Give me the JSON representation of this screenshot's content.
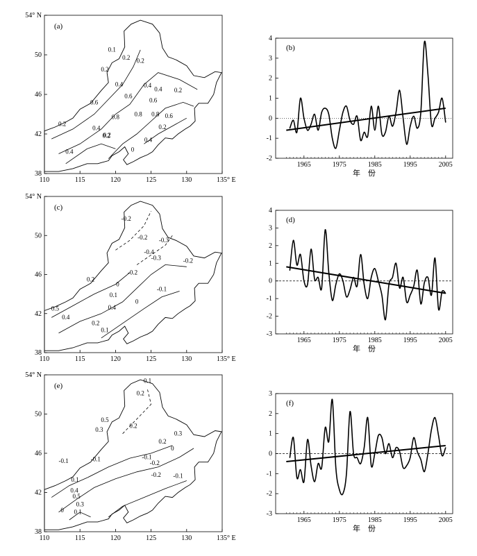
{
  "map_axis": {
    "lat_ticks": [
      "54° N",
      "50",
      "46",
      "42",
      "38"
    ],
    "lon_ticks": [
      "110",
      "115",
      "120",
      "125",
      "130",
      "135° E"
    ]
  },
  "ts_xlabel": "年　份",
  "panels": [
    {
      "map_label": "(a)",
      "contour_labels": [
        "0.1",
        "0.2",
        "0.2",
        "0.2",
        "0.4",
        "0.4",
        "0.4",
        "0.6",
        "0.6",
        "0.6",
        "0.8",
        "0.8",
        "0.8",
        "0.2",
        "0.2",
        "0.4",
        "0.2",
        "0.2",
        "0.4",
        "0.4",
        "0",
        "0.6",
        "0.2"
      ],
      "ts_label": "(b)",
      "yticks": [
        "4",
        "3",
        "2",
        "1",
        "0",
        "-1",
        "-2"
      ],
      "xticks": [
        "1965",
        "1975",
        "1985",
        "1995",
        "2005"
      ]
    },
    {
      "map_label": "(c)",
      "contour_labels": [
        "-0.2",
        "-0.2",
        "-0.3",
        "-0.4",
        "-0.2",
        "-0.3",
        "-0.2",
        "0.2",
        "0.1",
        "0.4",
        "0.5",
        "0.4",
        "0.2",
        "0.1",
        "0",
        "-0.1",
        "0"
      ],
      "ts_label": "(d)",
      "yticks": [
        "4",
        "3",
        "2",
        "1",
        "0",
        "-1",
        "-2",
        "-3"
      ],
      "xticks": [
        "1965",
        "1975",
        "1985",
        "1995",
        "2005"
      ]
    },
    {
      "map_label": "(e)",
      "contour_labels": [
        "0.1",
        "0.2",
        "0.5",
        "0.3",
        "0.2",
        "0.3",
        "0.2",
        "0",
        "-0.1",
        "-0.1",
        "-0.1",
        "-0.2",
        "-0.2",
        "0.1",
        "0.4",
        "0.5",
        "0.3",
        "0.1",
        "0",
        "-0.1"
      ],
      "ts_label": "(f)",
      "yticks": [
        "3",
        "2",
        "1",
        "0",
        "-1",
        "-2",
        "-3"
      ],
      "xticks": [
        "1965",
        "1975",
        "1985",
        "1995",
        "2005"
      ]
    }
  ],
  "chart_data": [
    {
      "type": "line",
      "panel": "(b)",
      "ylim": [
        -2,
        4
      ],
      "xlim": [
        1957,
        2007
      ],
      "x": [
        1961,
        1962,
        1963,
        1964,
        1965,
        1966,
        1967,
        1968,
        1969,
        1970,
        1971,
        1972,
        1973,
        1974,
        1975,
        1976,
        1977,
        1978,
        1979,
        1980,
        1981,
        1982,
        1983,
        1984,
        1985,
        1986,
        1987,
        1988,
        1989,
        1990,
        1991,
        1992,
        1993,
        1994,
        1995,
        1996,
        1997,
        1998,
        1999,
        2000,
        2001,
        2002,
        2003,
        2004,
        2005
      ],
      "series": [
        {
          "values": [
            -0.5,
            -0.1,
            -0.7,
            1.0,
            0.0,
            -0.6,
            -0.3,
            0.2,
            -0.6,
            0.3,
            0.5,
            0.2,
            -1.0,
            -1.5,
            -0.6,
            0.3,
            0.6,
            -0.1,
            -0.3,
            0.1,
            -1.1,
            -0.7,
            -0.9,
            0.6,
            -0.6,
            0.6,
            -0.8,
            -0.7,
            0.1,
            -0.4,
            0.3,
            1.4,
            0.0,
            -1.3,
            -0.4,
            0.1,
            -0.5,
            0.3,
            3.8,
            2.2,
            -0.3,
            0.0,
            0.3,
            1.0,
            -0.2
          ]
        },
        {
          "values": [
            -0.6,
            0.5
          ],
          "x": [
            1960,
            2005
          ],
          "note": "linear trend"
        }
      ],
      "xlabel": "年 份"
    },
    {
      "type": "line",
      "panel": "(d)",
      "ylim": [
        -3,
        4
      ],
      "xlim": [
        1957,
        2007
      ],
      "x": [
        1961,
        1962,
        1963,
        1964,
        1965,
        1966,
        1967,
        1968,
        1969,
        1970,
        1971,
        1972,
        1973,
        1974,
        1975,
        1976,
        1977,
        1978,
        1979,
        1980,
        1981,
        1982,
        1983,
        1984,
        1985,
        1986,
        1987,
        1988,
        1989,
        1990,
        1991,
        1992,
        1993,
        1994,
        1995,
        1996,
        1997,
        1998,
        1999,
        2000,
        2001,
        2002,
        2003,
        2004,
        2005
      ],
      "series": [
        {
          "values": [
            0.6,
            2.3,
            0.9,
            1.5,
            0.0,
            -0.2,
            1.8,
            0.1,
            0.2,
            -0.4,
            2.9,
            0.5,
            -1.1,
            -0.2,
            0.4,
            0.0,
            -0.9,
            -0.5,
            0.2,
            -0.3,
            1.5,
            -0.2,
            -1.0,
            0.2,
            0.7,
            0.0,
            -0.8,
            -2.2,
            -0.2,
            0.2,
            1.0,
            -0.4,
            0.2,
            -1.2,
            -0.8,
            -0.3,
            0.6,
            -1.3,
            -0.1,
            0.2,
            -0.8,
            1.3,
            -1.6,
            -0.6,
            -0.7
          ]
        },
        {
          "values": [
            0.8,
            -0.7
          ],
          "x": [
            1960,
            2005
          ],
          "note": "linear trend"
        }
      ],
      "xlabel": "年 份"
    },
    {
      "type": "line",
      "panel": "(f)",
      "ylim": [
        -3,
        3
      ],
      "xlim": [
        1957,
        2007
      ],
      "x": [
        1961,
        1962,
        1963,
        1964,
        1965,
        1966,
        1967,
        1968,
        1969,
        1970,
        1971,
        1972,
        1973,
        1974,
        1975,
        1976,
        1977,
        1978,
        1979,
        1980,
        1981,
        1982,
        1983,
        1984,
        1985,
        1986,
        1987,
        1988,
        1989,
        1990,
        1991,
        1992,
        1993,
        1994,
        1995,
        1996,
        1997,
        1998,
        1999,
        2000,
        2001,
        2002,
        2003,
        2004,
        2005
      ],
      "series": [
        {
          "values": [
            -0.2,
            0.8,
            -1.2,
            -0.8,
            -1.4,
            0.7,
            -0.6,
            -1.4,
            -0.5,
            -0.7,
            1.3,
            0.6,
            2.7,
            -0.7,
            -1.8,
            -2.0,
            -1.0,
            2.1,
            0.0,
            -0.2,
            -0.5,
            0.3,
            1.8,
            -0.6,
            0.0,
            0.9,
            0.8,
            0.0,
            0.5,
            -0.2,
            0.3,
            0.1,
            -0.7,
            -0.6,
            -0.2,
            0.8,
            0.1,
            -0.3,
            -0.9,
            0.0,
            1.2,
            1.8,
            0.9,
            -0.1,
            0.3
          ]
        },
        {
          "values": [
            -0.4,
            0.4
          ],
          "x": [
            1960,
            2005
          ],
          "note": "linear trend"
        }
      ],
      "xlabel": "年 份"
    }
  ]
}
